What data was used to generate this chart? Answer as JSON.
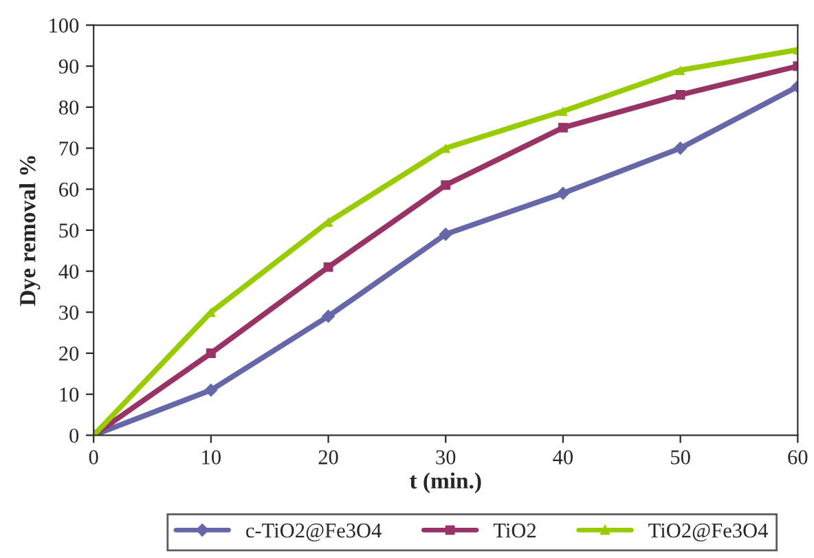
{
  "chart_data": {
    "type": "line",
    "xlabel": "t (min.)",
    "ylabel": "Dye removal %",
    "x": [
      0,
      10,
      20,
      30,
      40,
      50,
      60
    ],
    "series": [
      {
        "name": "c-TiO2@Fe3O4",
        "color": "#6667a8",
        "marker": "diamond",
        "values": [
          0,
          11,
          29,
          49,
          59,
          70,
          85
        ]
      },
      {
        "name": "TiO2",
        "color": "#993366",
        "marker": "square",
        "values": [
          0,
          20,
          41,
          61,
          75,
          83,
          90
        ]
      },
      {
        "name": "TiO2@Fe3O4",
        "color": "#99cc00",
        "marker": "triangle",
        "values": [
          0,
          30,
          52,
          70,
          79,
          89,
          94
        ]
      }
    ],
    "xlim": [
      0,
      60
    ],
    "xticks": [
      0,
      10,
      20,
      30,
      40,
      50,
      60
    ],
    "ylim": [
      0,
      100
    ],
    "yticks": [
      0,
      10,
      20,
      30,
      40,
      50,
      60,
      70,
      80,
      90,
      100
    ],
    "grid": false,
    "legend": "bottom",
    "line_style": "solid"
  }
}
